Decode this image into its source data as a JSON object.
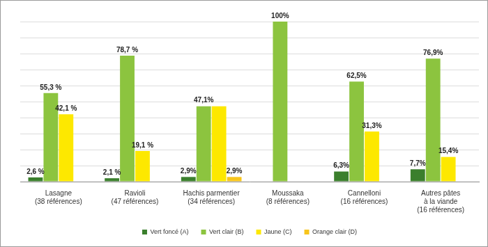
{
  "chart_data": {
    "type": "bar",
    "categories": [
      [
        "Lasagne",
        "(38 références)"
      ],
      [
        "Ravioli",
        "(47 références)"
      ],
      [
        "Hachis parmentier",
        "(34 références)"
      ],
      [
        "Moussaka",
        "(8 références)"
      ],
      [
        "Cannelloni",
        "(16 références)"
      ],
      [
        "Autres pâtes",
        "à la viande",
        "(16 références)"
      ]
    ],
    "series": [
      {
        "name": "Vert foncé (A)",
        "color": "#3b7f2d",
        "values": [
          2.6,
          2.1,
          2.9,
          null,
          6.3,
          7.7
        ],
        "value_labels": [
          "2,6 %",
          "2,1 %",
          "2,9%",
          null,
          "6,3%",
          "7,7%"
        ]
      },
      {
        "name": "Vert clair (B)",
        "color": "#8cc43f",
        "values": [
          55.3,
          78.7,
          47.1,
          100,
          62.5,
          76.9
        ],
        "value_labels": [
          "55,3 %",
          "78,7 %",
          "47,1%",
          "100%",
          "62,5%",
          "76,9%"
        ]
      },
      {
        "name": "Jaune (C)",
        "color": "#fde800",
        "values": [
          42.1,
          19.1,
          47.1,
          null,
          31.3,
          15.4
        ],
        "value_labels": [
          "42,1 %",
          "19,1 %",
          null,
          null,
          "31,3%",
          "15,4%"
        ]
      },
      {
        "name": "Orange clair (D)",
        "color": "#f7c51c",
        "values": [
          null,
          null,
          2.9,
          null,
          null,
          null
        ],
        "value_labels": [
          null,
          null,
          "2,9%",
          null,
          null,
          null
        ]
      }
    ],
    "ylim": [
      0,
      100
    ],
    "yticks": [
      0,
      10,
      20,
      30,
      40,
      50,
      60,
      70,
      80,
      90,
      100
    ],
    "grid": true,
    "legend": "bottom",
    "data_labels": true,
    "tick_labels": "x"
  }
}
